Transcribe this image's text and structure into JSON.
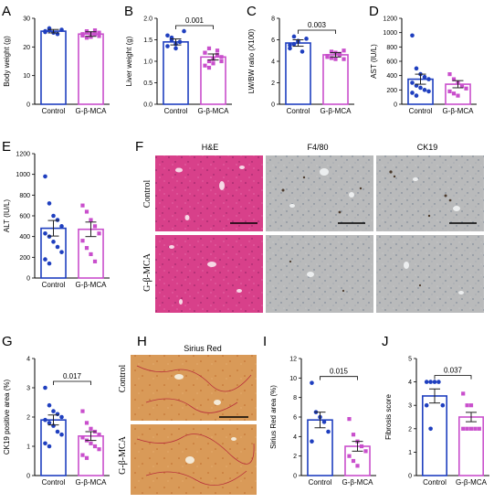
{
  "colors": {
    "control": "#1f3fbf",
    "treatment": "#c94fcc",
    "he_tissue": "#d8408a",
    "ihc_tissue": "#b7b8b7",
    "sirius_tissue": "#d89a5a"
  },
  "chart_data": [
    {
      "panel": "A",
      "type": "bar",
      "categories": [
        "Control",
        "G-β-MCA"
      ],
      "ylabel": "Body weight (g)",
      "ylim": [
        0,
        30
      ],
      "yticks": [
        0,
        10,
        20,
        30
      ],
      "means": [
        25.5,
        24.5
      ],
      "errors": [
        0.6,
        0.8
      ],
      "points": [
        [
          25.5,
          26.5,
          25,
          24.5,
          26,
          25.2,
          25.8,
          25
        ],
        [
          24,
          25.5,
          23.5,
          24.5,
          25,
          24,
          23.2,
          24.8,
          25.8,
          23.8,
          24.5,
          25.2
        ]
      ],
      "pvalue": ""
    },
    {
      "panel": "B",
      "type": "bar",
      "categories": [
        "Control",
        "G-β-MCA"
      ],
      "ylabel": "Liver weight (g)",
      "ylim": [
        0,
        2.0
      ],
      "yticks": [
        0.0,
        0.5,
        1.0,
        1.5,
        2.0
      ],
      "means": [
        1.45,
        1.1
      ],
      "errors": [
        0.07,
        0.07
      ],
      "points": [
        [
          1.6,
          1.5,
          1.3,
          1.45,
          1.7,
          1.35,
          1.55,
          1.4
        ],
        [
          1.2,
          1.0,
          0.95,
          1.25,
          1.1,
          0.9,
          1.3,
          1.05,
          1.15,
          1.0,
          1.2,
          0.85
        ]
      ],
      "pvalue": "0.001"
    },
    {
      "panel": "C",
      "type": "bar",
      "categories": [
        "Control",
        "G-β-MCA"
      ],
      "ylabel": "LW/BW ratio (X100)",
      "ylim": [
        0,
        8
      ],
      "yticks": [
        0,
        2,
        4,
        6,
        8
      ],
      "means": [
        5.7,
        4.6
      ],
      "errors": [
        0.3,
        0.2
      ],
      "points": [
        [
          5.2,
          6.3,
          5.9,
          4.9,
          6.1,
          5.5,
          5.6,
          5.8
        ],
        [
          4.5,
          4.9,
          4.2,
          4.7,
          5.0,
          4.4,
          4.3,
          4.8,
          4.6,
          4.2
        ]
      ],
      "pvalue": "0.003"
    },
    {
      "panel": "D",
      "type": "bar",
      "categories": [
        "Control",
        "G-β-MCA"
      ],
      "ylabel": "AST (IU/L)",
      "ylim": [
        0,
        1200
      ],
      "yticks": [
        0,
        200,
        400,
        600,
        800,
        1000,
        1200
      ],
      "means": [
        350,
        280
      ],
      "errors": [
        70,
        50
      ],
      "points": [
        [
          960,
          500,
          420,
          380,
          350,
          300,
          260,
          230,
          200,
          180,
          160,
          120
        ],
        [
          420,
          350,
          300,
          260,
          220,
          180,
          150,
          120
        ]
      ],
      "pvalue": ""
    },
    {
      "panel": "E",
      "type": "bar",
      "categories": [
        "Control",
        "G-β-MCA"
      ],
      "ylabel": "ALT (IU/L)",
      "ylim": [
        0,
        1200
      ],
      "yticks": [
        0,
        200,
        400,
        600,
        800,
        1000,
        1200
      ],
      "means": [
        480,
        470
      ],
      "errors": [
        75,
        70
      ],
      "points": [
        [
          980,
          720,
          600,
          560,
          500,
          430,
          400,
          350,
          300,
          250,
          180,
          140
        ],
        [
          700,
          640,
          560,
          500,
          430,
          360,
          290,
          230,
          160
        ]
      ],
      "pvalue": ""
    },
    {
      "panel": "G",
      "type": "bar",
      "categories": [
        "Control",
        "G-β-MCA"
      ],
      "ylabel": "CK19 positive area (%)",
      "ylim": [
        0,
        4
      ],
      "yticks": [
        0,
        1,
        2,
        3,
        4
      ],
      "means": [
        1.9,
        1.35
      ],
      "errors": [
        0.17,
        0.15
      ],
      "points": [
        [
          3.0,
          2.4,
          2.2,
          2.1,
          2.0,
          1.9,
          1.8,
          1.7,
          1.5,
          1.4,
          1.1,
          1.0
        ],
        [
          2.2,
          1.8,
          1.6,
          1.5,
          1.4,
          1.3,
          1.2,
          1.1,
          1.0,
          0.9,
          0.7,
          0.6
        ]
      ],
      "pvalue": "0.017"
    },
    {
      "panel": "I",
      "type": "bar",
      "categories": [
        "Control",
        "G-β-MCA"
      ],
      "ylabel": "Sirius Red area (%)",
      "ylim": [
        0,
        12
      ],
      "yticks": [
        0,
        2,
        4,
        6,
        8,
        10,
        12
      ],
      "means": [
        5.7,
        3.0
      ],
      "errors": [
        0.8,
        0.5
      ],
      "points": [
        [
          9.5,
          6.5,
          6.0,
          5.5,
          4.5,
          3.5
        ],
        [
          5.8,
          4.2,
          3.5,
          3.0,
          2.5,
          2.0,
          1.5,
          1.0
        ]
      ],
      "pvalue": "0.015"
    },
    {
      "panel": "J",
      "type": "bar",
      "categories": [
        "Control",
        "G-β-MCA"
      ],
      "ylabel": "Fibrosis score",
      "ylim": [
        0,
        5
      ],
      "yticks": [
        0,
        1,
        2,
        3,
        4,
        5
      ],
      "means": [
        3.4,
        2.5
      ],
      "errors": [
        0.3,
        0.2
      ],
      "points": [
        [
          4,
          4,
          4,
          4,
          3,
          3,
          2
        ],
        [
          3.5,
          3,
          3,
          2,
          2,
          2,
          2,
          2
        ]
      ],
      "pvalue": "0.037"
    }
  ],
  "image_panels": {
    "F": {
      "letter": "F",
      "columns": [
        "H&E",
        "F4/80",
        "CK19"
      ],
      "rows": [
        "Control",
        "G-β-MCA"
      ]
    },
    "H": {
      "letter": "H",
      "title": "Sirius Red",
      "rows": [
        "Control",
        "G-β-MCA"
      ]
    }
  }
}
